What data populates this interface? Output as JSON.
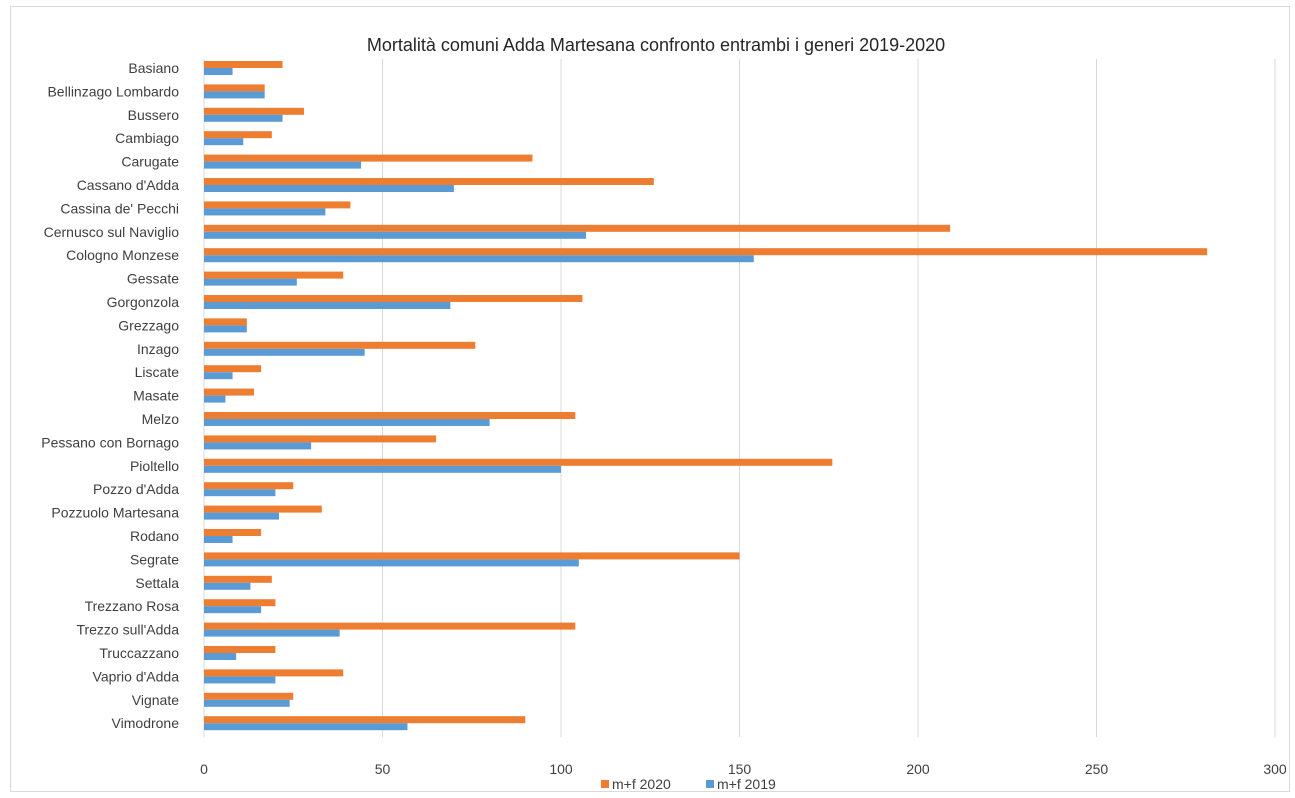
{
  "chart_data": {
    "type": "bar",
    "orientation": "horizontal",
    "title": "Mortalità comuni Adda Martesana confronto entrambi i generi 2019-2020",
    "categories": [
      "Basiano",
      "Bellinzago Lombardo",
      "Bussero",
      "Cambiago",
      "Carugate",
      "Cassano d'Adda",
      "Cassina de' Pecchi",
      "Cernusco sul Naviglio",
      "Cologno Monzese",
      "Gessate",
      "Gorgonzola",
      "Grezzago",
      "Inzago",
      "Liscate",
      "Masate",
      "Melzo",
      "Pessano con Bornago",
      "Pioltello",
      "Pozzo d'Adda",
      "Pozzuolo Martesana",
      "Rodano",
      "Segrate",
      "Settala",
      "Trezzano Rosa",
      "Trezzo sull'Adda",
      "Truccazzano",
      "Vaprio d'Adda",
      "Vignate",
      "Vimodrone"
    ],
    "series": [
      {
        "name": "m+f 2020",
        "color": "#ed7d31",
        "values": [
          22,
          17,
          28,
          19,
          92,
          126,
          41,
          209,
          281,
          39,
          106,
          12,
          76,
          16,
          14,
          104,
          65,
          176,
          25,
          33,
          16,
          150,
          19,
          20,
          104,
          20,
          39,
          25,
          90
        ]
      },
      {
        "name": "m+f 2019",
        "color": "#5b9bd5",
        "values": [
          8,
          17,
          22,
          11,
          44,
          70,
          34,
          107,
          154,
          26,
          69,
          12,
          45,
          8,
          6,
          80,
          30,
          100,
          20,
          21,
          8,
          105,
          13,
          16,
          38,
          9,
          20,
          24,
          57
        ]
      }
    ],
    "xlim": [
      0,
      300
    ],
    "xticks": [
      "0",
      "50",
      "100",
      "150",
      "200",
      "250",
      "300"
    ],
    "grid": true,
    "legend_position": "bottom"
  }
}
